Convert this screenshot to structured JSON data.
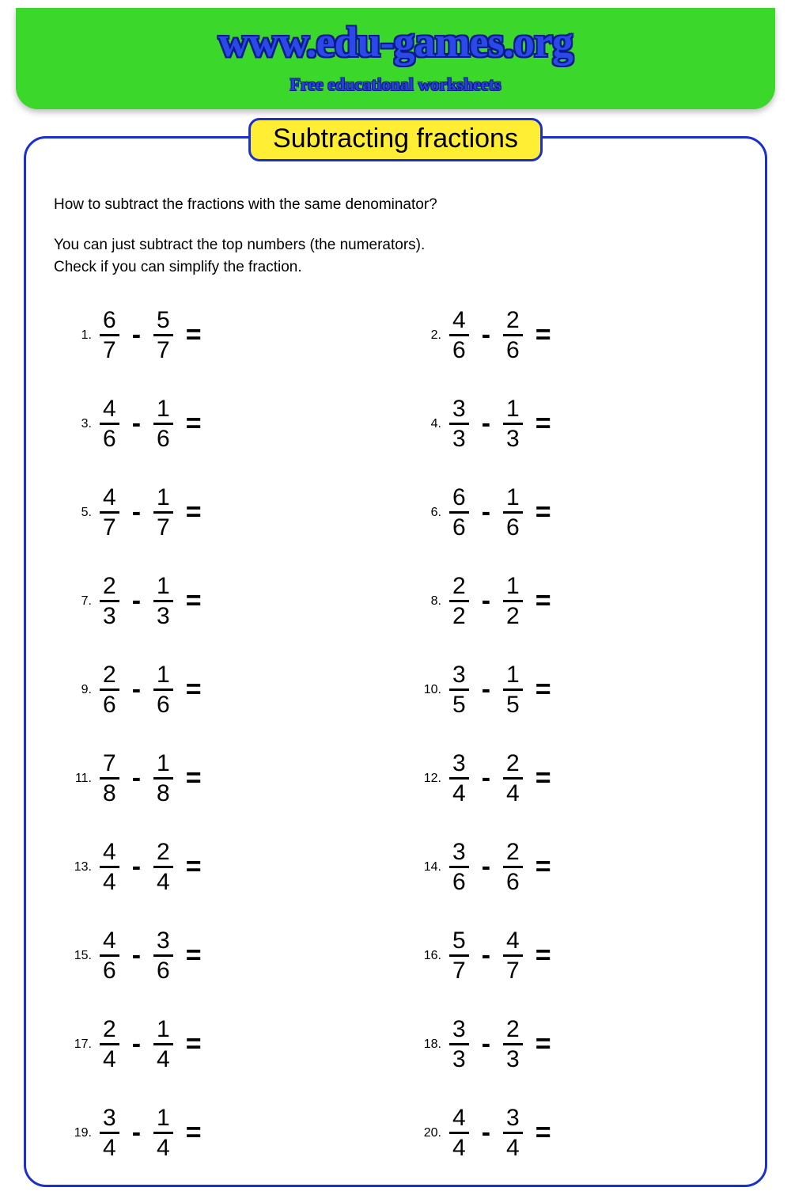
{
  "header": {
    "title": "www.edu-games.org",
    "subtitle": "Free educational worksheets",
    "bg_color": "#3bd72a",
    "title_color": "#2a49e8",
    "title_outline": "#0a1a8a"
  },
  "worksheet": {
    "title": "Subtracting fractions",
    "title_pill_bg": "#ffee33",
    "border_color": "#1a2fd0",
    "intro_line1": "How to subtract the fractions with the same denominator?",
    "intro_line2": "You can just subtract the top numbers (the numerators).",
    "intro_line3": "Check if you can simplify the fraction.",
    "operator": "-",
    "equals": "=",
    "problems": [
      {
        "n": 1,
        "a_num": 6,
        "a_den": 7,
        "b_num": 5,
        "b_den": 7
      },
      {
        "n": 2,
        "a_num": 4,
        "a_den": 6,
        "b_num": 2,
        "b_den": 6
      },
      {
        "n": 3,
        "a_num": 4,
        "a_den": 6,
        "b_num": 1,
        "b_den": 6
      },
      {
        "n": 4,
        "a_num": 3,
        "a_den": 3,
        "b_num": 1,
        "b_den": 3
      },
      {
        "n": 5,
        "a_num": 4,
        "a_den": 7,
        "b_num": 1,
        "b_den": 7
      },
      {
        "n": 6,
        "a_num": 6,
        "a_den": 6,
        "b_num": 1,
        "b_den": 6
      },
      {
        "n": 7,
        "a_num": 2,
        "a_den": 3,
        "b_num": 1,
        "b_den": 3
      },
      {
        "n": 8,
        "a_num": 2,
        "a_den": 2,
        "b_num": 1,
        "b_den": 2
      },
      {
        "n": 9,
        "a_num": 2,
        "a_den": 6,
        "b_num": 1,
        "b_den": 6
      },
      {
        "n": 10,
        "a_num": 3,
        "a_den": 5,
        "b_num": 1,
        "b_den": 5
      },
      {
        "n": 11,
        "a_num": 7,
        "a_den": 8,
        "b_num": 1,
        "b_den": 8
      },
      {
        "n": 12,
        "a_num": 3,
        "a_den": 4,
        "b_num": 2,
        "b_den": 4
      },
      {
        "n": 13,
        "a_num": 4,
        "a_den": 4,
        "b_num": 2,
        "b_den": 4
      },
      {
        "n": 14,
        "a_num": 3,
        "a_den": 6,
        "b_num": 2,
        "b_den": 6
      },
      {
        "n": 15,
        "a_num": 4,
        "a_den": 6,
        "b_num": 3,
        "b_den": 6
      },
      {
        "n": 16,
        "a_num": 5,
        "a_den": 7,
        "b_num": 4,
        "b_den": 7
      },
      {
        "n": 17,
        "a_num": 2,
        "a_den": 4,
        "b_num": 1,
        "b_den": 4
      },
      {
        "n": 18,
        "a_num": 3,
        "a_den": 3,
        "b_num": 2,
        "b_den": 3
      },
      {
        "n": 19,
        "a_num": 3,
        "a_den": 4,
        "b_num": 1,
        "b_den": 4
      },
      {
        "n": 20,
        "a_num": 4,
        "a_den": 4,
        "b_num": 3,
        "b_den": 4
      }
    ]
  }
}
